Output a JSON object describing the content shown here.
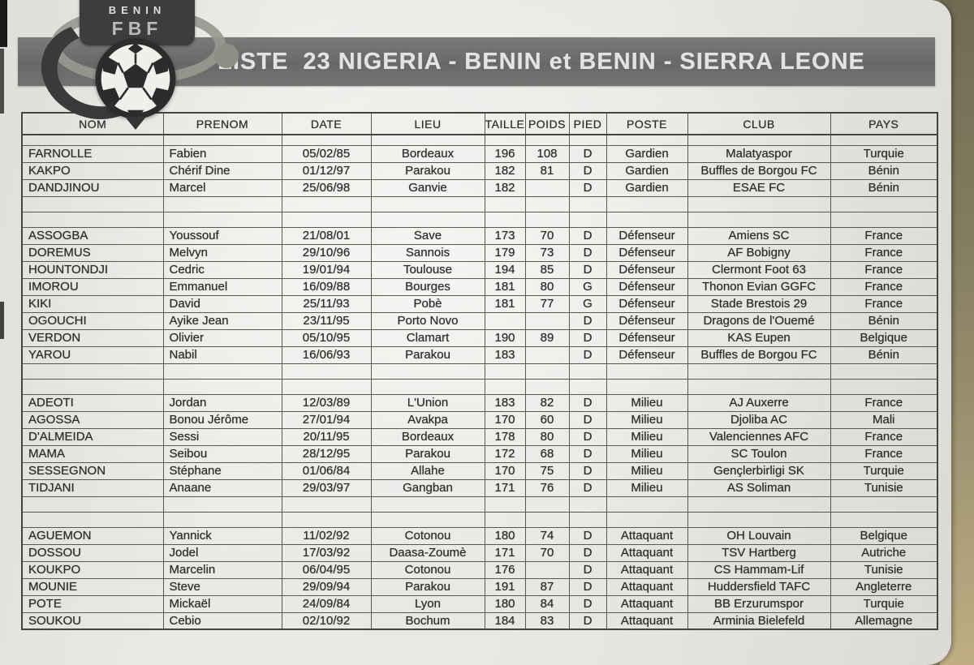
{
  "colors": {
    "banner_bg": "#6a6a6a",
    "banner_text": "#e3e3e3",
    "paper": "#e9e7e3",
    "surface_edge": "#9d9271",
    "table_line": "#5a584f"
  },
  "logo": {
    "line1": "BENIN",
    "line2": "FBF"
  },
  "banner": {
    "title": "LISTE  23 NIGERIA - BENIN et BENIN - SIERRA LEONE"
  },
  "table": {
    "headers": [
      "NOM",
      "PRENOM",
      "DATE",
      "LIEU",
      "TAILLE",
      "POIDS",
      "PIED",
      "POSTE",
      "CLUB",
      "PAYS"
    ],
    "groups": [
      {
        "rows": [
          [
            "FARNOLLE",
            "Fabien",
            "05/02/85",
            "Bordeaux",
            "196",
            "108",
            "D",
            "Gardien",
            "Malatyaspor",
            "Turquie"
          ],
          [
            "KAKPO",
            "Chérif Dine",
            "01/12/97",
            "Parakou",
            "182",
            "81",
            "D",
            "Gardien",
            "Buffles de Borgou FC",
            "Bénin"
          ],
          [
            "DANDJINOU",
            "Marcel",
            "25/06/98",
            "Ganvie",
            "182",
            "",
            "D",
            "Gardien",
            "ESAE FC",
            "Bénin"
          ]
        ]
      },
      {
        "rows": [
          [
            "ASSOGBA",
            "Youssouf",
            "21/08/01",
            "Save",
            "173",
            "70",
            "D",
            "Défenseur",
            "Amiens SC",
            "France"
          ],
          [
            "DOREMUS",
            "Melvyn",
            "29/10/96",
            "Sannois",
            "179",
            "73",
            "D",
            "Défenseur",
            "AF Bobigny",
            "France"
          ],
          [
            "HOUNTONDJI",
            "Cedric",
            "19/01/94",
            "Toulouse",
            "194",
            "85",
            "D",
            "Défenseur",
            "Clermont Foot 63",
            "France"
          ],
          [
            "IMOROU",
            "Emmanuel",
            "16/09/88",
            "Bourges",
            "181",
            "80",
            "G",
            "Défenseur",
            "Thonon Evian GGFC",
            "France"
          ],
          [
            "KIKI",
            "David",
            "25/11/93",
            "Pobè",
            "181",
            "77",
            "G",
            "Défenseur",
            "Stade Brestois 29",
            "France"
          ],
          [
            "OGOUCHI",
            "Ayike Jean",
            "23/11/95",
            "Porto Novo",
            "",
            "",
            "D",
            "Défenseur",
            "Dragons de l'Ouemé",
            "Bénin"
          ],
          [
            "VERDON",
            "Olivier",
            "05/10/95",
            "Clamart",
            "190",
            "89",
            "D",
            "Défenseur",
            "KAS Eupen",
            "Belgique"
          ],
          [
            "YAROU",
            "Nabil",
            "16/06/93",
            "Parakou",
            "183",
            "",
            "D",
            "Défenseur",
            "Buffles de Borgou FC",
            "Bénin"
          ]
        ]
      },
      {
        "rows": [
          [
            "ADEOTI",
            "Jordan",
            "12/03/89",
            "L'Union",
            "183",
            "82",
            "D",
            "Milieu",
            "AJ Auxerre",
            "France"
          ],
          [
            "AGOSSA",
            "Bonou Jérôme",
            "27/01/94",
            "Avakpa",
            "170",
            "60",
            "D",
            "Milieu",
            "Djoliba AC",
            "Mali"
          ],
          [
            "D'ALMEIDA",
            "Sessi",
            "20/11/95",
            "Bordeaux",
            "178",
            "80",
            "D",
            "Milieu",
            "Valenciennes AFC",
            "France"
          ],
          [
            "MAMA",
            "Seibou",
            "28/12/95",
            "Parakou",
            "172",
            "68",
            "D",
            "Milieu",
            "SC Toulon",
            "France"
          ],
          [
            "SESSEGNON",
            "Stéphane",
            "01/06/84",
            "Allahe",
            "170",
            "75",
            "D",
            "Milieu",
            "Gençlerbirligi SK",
            "Turquie"
          ],
          [
            "TIDJANI",
            "Anaane",
            "29/03/97",
            "Gangban",
            "171",
            "76",
            "D",
            "Milieu",
            "AS Soliman",
            "Tunisie"
          ]
        ]
      },
      {
        "rows": [
          [
            "AGUEMON",
            "Yannick",
            "11/02/92",
            "Cotonou",
            "180",
            "74",
            "D",
            "Attaquant",
            "OH Louvain",
            "Belgique"
          ],
          [
            "DOSSOU",
            "Jodel",
            "17/03/92",
            "Daasa-Zoumè",
            "171",
            "70",
            "D",
            "Attaquant",
            "TSV Hartberg",
            "Autriche"
          ],
          [
            "KOUKPO",
            "Marcelin",
            "06/04/95",
            "Cotonou",
            "176",
            "",
            "D",
            "Attaquant",
            "CS Hammam-Lif",
            "Tunisie"
          ],
          [
            "MOUNIE",
            "Steve",
            "29/09/94",
            "Parakou",
            "191",
            "87",
            "D",
            "Attaquant",
            "Huddersfield TAFC",
            "Angleterre"
          ],
          [
            "POTE",
            "Mickaël",
            "24/09/84",
            "Lyon",
            "180",
            "84",
            "D",
            "Attaquant",
            "BB Erzurumspor",
            "Turquie"
          ],
          [
            "SOUKOU",
            "Cebio",
            "02/10/92",
            "Bochum",
            "184",
            "83",
            "D",
            "Attaquant",
            "Arminia Bielefeld",
            "Allemagne"
          ]
        ]
      }
    ]
  }
}
